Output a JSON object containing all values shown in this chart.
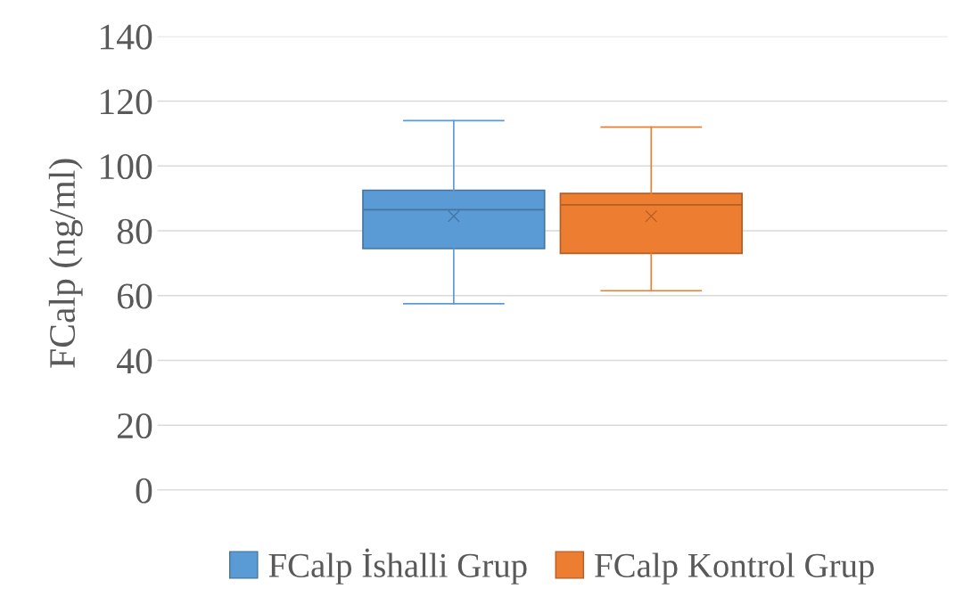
{
  "chart_data": {
    "type": "box",
    "ylabel": "FCalp (ng/ml)",
    "categories": [
      null
    ],
    "series": [
      {
        "name": "FCalp İshalli Grup",
        "color": "#5b9bd5",
        "boxes": [
          {
            "low": 57.5,
            "q1": 74.5,
            "median": 86.5,
            "q3": 92.5,
            "high": 114,
            "mean": 84.5
          }
        ]
      },
      {
        "name": "FCalp Kontrol Grup",
        "color": "#ed7d31",
        "boxes": [
          {
            "low": 61.5,
            "q1": 73,
            "median": 88,
            "q3": 91.5,
            "high": 112,
            "mean": 84.5
          }
        ]
      }
    ],
    "ylim": [
      0,
      140
    ],
    "yticks": [
      0,
      20,
      40,
      60,
      80,
      100,
      120,
      140
    ],
    "grid": "y",
    "legend": "bottom",
    "marker": "cross",
    "tick_labels": "y"
  }
}
